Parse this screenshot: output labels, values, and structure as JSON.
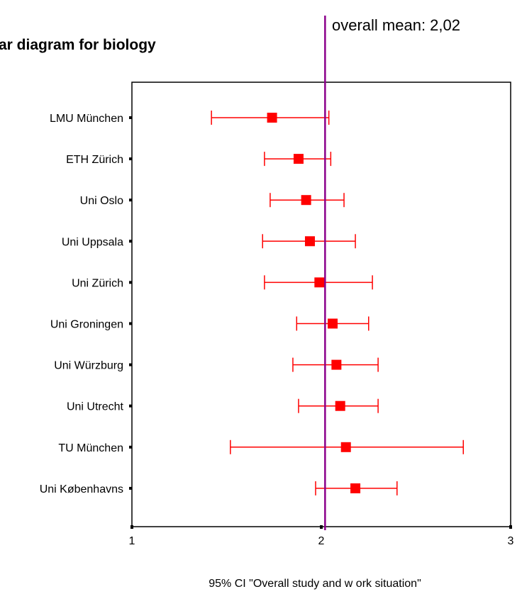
{
  "chart_data": {
    "type": "error-bar",
    "title": "ar diagram for biology",
    "xlabel": "95% CI \"Overall study and w ork situation\"",
    "xlim": [
      1,
      3
    ],
    "x_ticks": [
      "1",
      "2",
      "3"
    ],
    "reference_line": {
      "label": "overall mean: 2,02",
      "value": 2.02,
      "color": "#8b008b"
    },
    "marker_color": "#ff0000",
    "grid": false,
    "categories": [
      "LMU München",
      "ETH Zürich",
      "Uni Oslo",
      "Uni Uppsala",
      "Uni Zürich",
      "Uni Groningen",
      "Uni Würzburg",
      "Uni Utrecht",
      "TU München",
      "Uni Københavns"
    ],
    "series": [
      {
        "mean": 1.74,
        "lower": 1.42,
        "upper": 2.04
      },
      {
        "mean": 1.88,
        "lower": 1.7,
        "upper": 2.05
      },
      {
        "mean": 1.92,
        "lower": 1.73,
        "upper": 2.12
      },
      {
        "mean": 1.94,
        "lower": 1.69,
        "upper": 2.18
      },
      {
        "mean": 1.99,
        "lower": 1.7,
        "upper": 2.27
      },
      {
        "mean": 2.06,
        "lower": 1.87,
        "upper": 2.25
      },
      {
        "mean": 2.08,
        "lower": 1.85,
        "upper": 2.3
      },
      {
        "mean": 2.1,
        "lower": 1.88,
        "upper": 2.3
      },
      {
        "mean": 2.13,
        "lower": 1.52,
        "upper": 2.75
      },
      {
        "mean": 2.18,
        "lower": 1.97,
        "upper": 2.4
      }
    ]
  }
}
